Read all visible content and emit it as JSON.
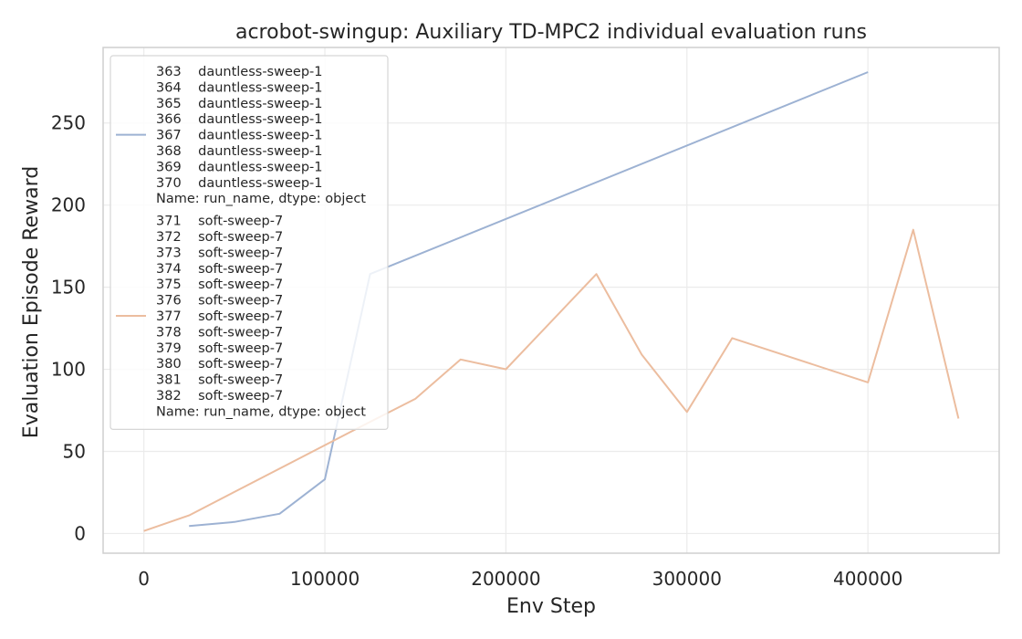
{
  "chart_data": {
    "type": "line",
    "title": "acrobot-swingup: Auxiliary TD-MPC2 individual evaluation runs",
    "xlabel": "Env Step",
    "ylabel": "Evaluation Episode Reward",
    "xlim": [
      -22500,
      472500
    ],
    "ylim": [
      -12,
      296
    ],
    "xticks": [
      0,
      100000,
      200000,
      300000,
      400000
    ],
    "xtick_labels": [
      "0",
      "100000",
      "200000",
      "300000",
      "400000"
    ],
    "yticks": [
      0,
      50,
      100,
      150,
      200,
      250
    ],
    "ytick_labels": [
      "0",
      "50",
      "100",
      "150",
      "200",
      "250"
    ],
    "grid": true,
    "legend_position": "top-left",
    "series": [
      {
        "color": "#9db2d3",
        "legend_lines": [
          "363    dauntless-sweep-1",
          "364    dauntless-sweep-1",
          "365    dauntless-sweep-1",
          "366    dauntless-sweep-1",
          "367    dauntless-sweep-1",
          "368    dauntless-sweep-1",
          "369    dauntless-sweep-1",
          "370    dauntless-sweep-1",
          "Name: run_name, dtype: object"
        ],
        "x": [
          25000,
          50000,
          75000,
          100000,
          125000,
          400000
        ],
        "y": [
          4.5,
          7,
          12,
          33,
          158,
          281
        ]
      },
      {
        "color": "#ecbd9f",
        "legend_lines": [
          "371    soft-sweep-7",
          "372    soft-sweep-7",
          "373    soft-sweep-7",
          "374    soft-sweep-7",
          "375    soft-sweep-7",
          "376    soft-sweep-7",
          "377    soft-sweep-7",
          "378    soft-sweep-7",
          "379    soft-sweep-7",
          "380    soft-sweep-7",
          "381    soft-sweep-7",
          "382    soft-sweep-7",
          "Name: run_name, dtype: object"
        ],
        "x": [
          0,
          25000,
          125000,
          150000,
          175000,
          200000,
          250000,
          275000,
          300000,
          325000,
          400000,
          425000,
          450000
        ],
        "y": [
          1.5,
          11,
          68,
          82,
          106,
          100,
          158,
          109,
          74,
          119,
          92,
          185,
          70
        ]
      }
    ]
  }
}
